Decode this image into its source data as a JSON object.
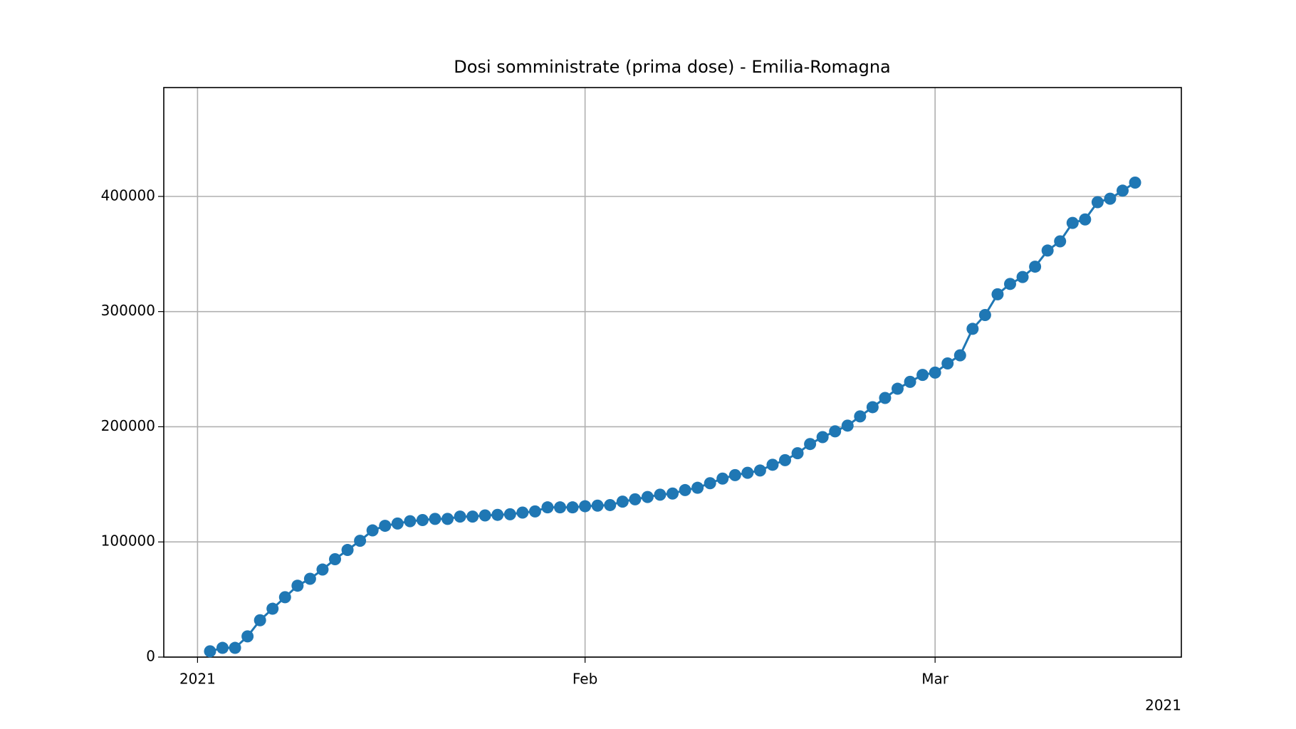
{
  "chart_data": {
    "type": "line",
    "title": "Dosi somministrate (prima dose) - Emilia-Romagna",
    "values": [
      5000,
      8000,
      8000,
      18000,
      32000,
      42000,
      52000,
      62000,
      68000,
      76000,
      85000,
      93000,
      101000,
      110000,
      114000,
      116000,
      118000,
      119000,
      120000,
      120000,
      122000,
      122000,
      123000,
      123500,
      124000,
      125500,
      126500,
      130000,
      130000,
      130000,
      131000,
      131500,
      132000,
      135000,
      137000,
      139000,
      141000,
      142000,
      145000,
      147000,
      151000,
      155000,
      158000,
      160000,
      162000,
      167000,
      171000,
      177000,
      185000,
      191000,
      196000,
      201000,
      209000,
      217000,
      225000,
      233000,
      239000,
      245000,
      247000,
      255000,
      262000,
      285000,
      297000,
      315000,
      324000,
      330000,
      339000,
      353000,
      361000,
      377000,
      380000,
      395000,
      398000,
      405000,
      412000
    ],
    "color": "#1f77b4",
    "xlim": [
      -3.7,
      77.7
    ],
    "xticks": [
      {
        "value": -1,
        "label": "2021"
      },
      {
        "value": 30,
        "label": "Feb"
      },
      {
        "value": 58,
        "label": "Mar"
      }
    ],
    "x_offset_label": "2021",
    "ylim": [
      0,
      494500
    ],
    "yticks": [
      0,
      100000,
      200000,
      300000,
      400000
    ],
    "grid": true
  }
}
